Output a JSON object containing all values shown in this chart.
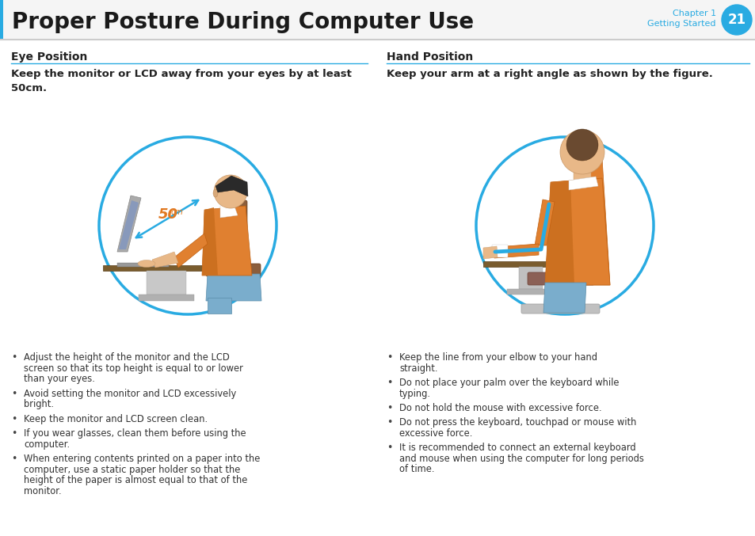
{
  "title": "Proper Posture During Computer Use",
  "chapter_label": "Chapter 1",
  "chapter_sub": "Getting Started",
  "chapter_num": "21",
  "chapter_color": "#29abe2",
  "section1_title": "Eye Position",
  "section2_title": "Hand Position",
  "section1_subtitle": "Keep the monitor or LCD away from your eyes by at least\n50cm.",
  "section2_subtitle": "Keep your arm at a right angle as shown by the figure.",
  "left_bullets": [
    "Adjust the height of the monitor and the LCD screen so that its top height is equal to or lower than your eyes.",
    "Avoid setting the monitor and LCD excessively bright.",
    "Keep the monitor and LCD screen clean.",
    "If you wear glasses, clean them before using the computer.",
    "When entering contents printed on a paper into the computer, use a static paper holder so that the height of the paper is almost equal to that of the monitor."
  ],
  "right_bullets": [
    "Keep the line from your elbow to your hand straight.",
    "Do not place your palm over the keyboard while typing.",
    "Do not hold the mouse with excessive force.",
    "Do not press the keyboard, touchpad or mouse with excessive force.",
    "It is recommended to connect an external keyboard and mouse when using the computer for long periods of time."
  ],
  "bg_color": "#ffffff",
  "divider_color": "#29abe2",
  "body_text_color": "#333333",
  "header_text_color": "#1a1a1a",
  "accent_left_color": "#29abe2"
}
